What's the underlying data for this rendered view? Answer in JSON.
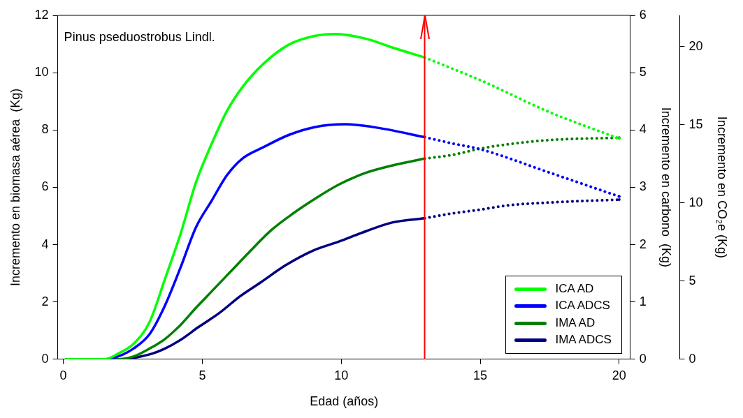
{
  "chart_data": {
    "type": "line",
    "xlabel": "Edad (años)",
    "ylabel": "Incremento en biomasa aérea  (Kg)",
    "y2label": "Incremento en carbono  (Kg)",
    "y3label": "Incremento en CO₂e (Kg)",
    "annotations": [
      "Pinus pseduostrobus Lindl."
    ],
    "xlim": [
      -0.2,
      20.4
    ],
    "xticks": [
      0,
      5,
      10,
      15,
      20
    ],
    "ylim": [
      0,
      12
    ],
    "yticks": [
      0,
      2,
      4,
      6,
      8,
      10,
      12
    ],
    "y2lim": [
      0,
      6
    ],
    "y2ticks": [
      0,
      1,
      2,
      3,
      4,
      5,
      6
    ],
    "y3lim": [
      0,
      22
    ],
    "y3ticks": [
      0,
      5,
      10,
      15,
      20
    ],
    "legend": "bottom right",
    "marker": "none",
    "line_style": "solid",
    "ref_lines": [
      {
        "axis": "x",
        "value": 13,
        "color": "#ff0000"
      }
    ],
    "series": [
      {
        "name": "ICA AD",
        "color": "#00ff00",
        "x": [
          0.1,
          1.5,
          1.98,
          2.54,
          3.1,
          3.65,
          4.21,
          4.77,
          5.33,
          5.88,
          6.44,
          7.2,
          8.12,
          9.04,
          9.79,
          10.9,
          11.83,
          13
        ],
        "values": [
          0,
          0,
          0.2,
          0.55,
          1.29,
          2.78,
          4.35,
          6.16,
          7.5,
          8.65,
          9.49,
          10.31,
          10.98,
          11.28,
          11.35,
          11.18,
          10.88,
          10.53
        ]
      },
      {
        "color": "#00ff00",
        "line_style": "dotted",
        "x": [
          13,
          14,
          15,
          17.5,
          20
        ],
        "values": [
          10.53,
          10.14,
          9.74,
          8.62,
          7.7
        ]
      },
      {
        "name": "ICA ADCS",
        "color": "#0000ff",
        "x": [
          0.1,
          1.5,
          1.98,
          2.54,
          3.1,
          3.65,
          4.21,
          4.77,
          5.33,
          5.88,
          6.44,
          7.2,
          8.12,
          9.04,
          10.15,
          11.36,
          13
        ],
        "values": [
          0,
          0,
          0.1,
          0.38,
          0.87,
          1.86,
          3.18,
          4.6,
          5.52,
          6.41,
          7.0,
          7.4,
          7.83,
          8.1,
          8.2,
          8.07,
          7.75
        ]
      },
      {
        "color": "#0000ff",
        "line_style": "dotted",
        "x": [
          13,
          14,
          15,
          17.5,
          20
        ],
        "values": [
          7.75,
          7.53,
          7.33,
          6.51,
          5.68
        ]
      },
      {
        "name": "IMA AD",
        "color": "#008000",
        "x": [
          0.1,
          2,
          2.54,
          3.1,
          3.65,
          4.21,
          4.77,
          5.33,
          6.06,
          6.8,
          7.5,
          8.27,
          9.04,
          9.9,
          10.9,
          11.83,
          13
        ],
        "values": [
          0,
          0,
          0.1,
          0.37,
          0.7,
          1.19,
          1.79,
          2.36,
          3.1,
          3.85,
          4.52,
          5.09,
          5.59,
          6.09,
          6.51,
          6.76,
          7.0
        ]
      },
      {
        "color": "#008000",
        "line_style": "dotted",
        "x": [
          13,
          14,
          15,
          16,
          17.5,
          20
        ],
        "values": [
          7.0,
          7.13,
          7.35,
          7.5,
          7.65,
          7.73
        ]
      },
      {
        "name": "IMA ADCS",
        "color": "#000080",
        "x": [
          0.1,
          2,
          3.1,
          3.65,
          4.21,
          4.86,
          5.61,
          6.35,
          7.1,
          8.0,
          8.96,
          9.9,
          10.9,
          11.83,
          13
        ],
        "values": [
          0,
          0,
          0.17,
          0.37,
          0.67,
          1.12,
          1.61,
          2.19,
          2.68,
          3.28,
          3.78,
          4.1,
          4.47,
          4.77,
          4.92
        ]
      },
      {
        "color": "#000080",
        "line_style": "dotted",
        "x": [
          13,
          14,
          15,
          16,
          17.5,
          20
        ],
        "values": [
          4.92,
          5.09,
          5.22,
          5.37,
          5.47,
          5.57
        ]
      }
    ]
  }
}
